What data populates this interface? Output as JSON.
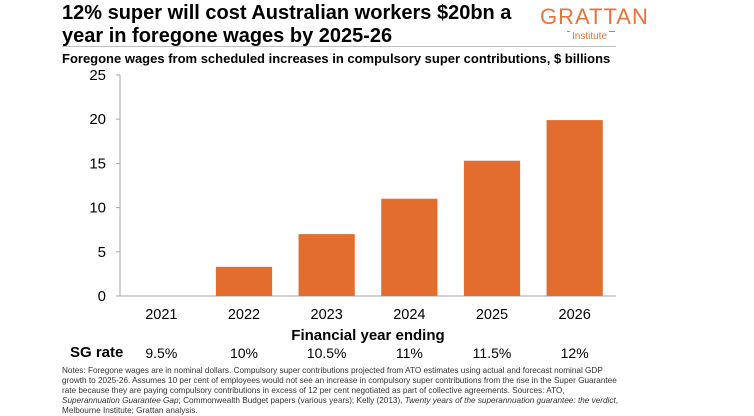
{
  "title_lines": [
    "12% super will cost Australian workers $20bn a",
    "year in foregone wages by 2025-26"
  ],
  "logo": {
    "word": "GRATTAN",
    "sub": "Institute",
    "color": "#e8733a"
  },
  "subtitle": "Foregone wages from scheduled increases in compulsory super contributions, $ billions",
  "chart_data": {
    "type": "bar",
    "categories": [
      "2021",
      "2022",
      "2023",
      "2024",
      "2025",
      "2026"
    ],
    "values": [
      0,
      3.3,
      7.0,
      11.0,
      15.3,
      19.9
    ],
    "xlabel": "Financial year ending",
    "ylabel": "",
    "ylim": [
      0,
      25
    ],
    "yticks": [
      "0",
      "5",
      "10",
      "15",
      "20",
      "25"
    ],
    "bar_color": "#e36c2f",
    "grid": false
  },
  "sg_rate": {
    "label": "SG rate",
    "values": [
      "9.5%",
      "10%",
      "10.5%",
      "11%",
      "11.5%",
      "12%"
    ]
  },
  "notes": {
    "part1": "Notes: Foregone wages are in nominal dollars. Compulsory super contributions projected from ATO estimates using actual and forecast nominal GDP growth to 2025-26. Assumes 10 per cent of employees would not see an increase in compulsory super contributions from the rise in the Super Guarantee rate because they are paying compulsory contributions in excess of 12 per cent negotiated as part of collective agreements. Sources: ATO, ",
    "italic1": "Superannuation Guarantee Gap",
    "part2": "; Commonwealth Budget papers (various years); Kelly (2013), ",
    "italic2": "Twenty years of the superannuation guarantee: the verdict",
    "part3": ", Melbourne Institute; Grattan analysis."
  }
}
